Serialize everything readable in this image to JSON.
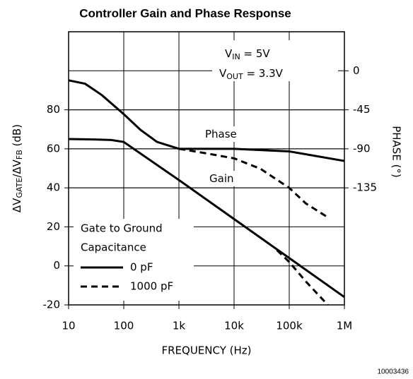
{
  "chart_data": {
    "type": "line",
    "title": "Controller Gain and Phase Response",
    "xlabel": "FREQUENCY (Hz)",
    "ylabel": [
      "ΔV",
      "GATE",
      "/ΔV",
      "FB",
      " (dB)"
    ],
    "y2label": "PHASE (°)",
    "footnote": "10003436",
    "xscale": "log",
    "xlim": [
      10,
      1000000
    ],
    "xticks": [
      10,
      100,
      {
        "value": 1000,
        "label": "1k"
      },
      {
        "value": 10000,
        "label": "10k"
      },
      {
        "value": 100000,
        "label": "100k"
      },
      {
        "value": 1000000,
        "label": "1M"
      }
    ],
    "ylim": [
      -20,
      120
    ],
    "yticks": [
      -20,
      0,
      20,
      40,
      60,
      80
    ],
    "y2lim": [
      -270,
      45
    ],
    "y2ticks": [
      0,
      -45,
      -90,
      -135
    ],
    "grid": true,
    "legend_title": [
      "Gate to Ground",
      "Capacitance"
    ],
    "annotations": [
      {
        "parts": [
          "V",
          "IN",
          " = 5V"
        ]
      },
      {
        "parts": [
          "V",
          "OUT",
          " = 3.3V"
        ]
      },
      {
        "parts": [
          "Phase"
        ]
      },
      {
        "parts": [
          "Gain"
        ]
      }
    ],
    "series": [
      {
        "name": "0 pF",
        "color": "#000000",
        "dash": false,
        "axis": "y",
        "x": [
          10,
          30,
          60,
          100,
          1000,
          10000,
          100000,
          1000000
        ],
        "values": [
          65,
          64.8,
          64.5,
          63.5,
          44,
          24,
          4,
          -16
        ]
      },
      {
        "name": "1000 pF",
        "color": "#000000",
        "dash": true,
        "axis": "y",
        "x": [
          60000,
          100000,
          200000,
          500000
        ],
        "values": [
          8,
          2,
          -8,
          -20
        ]
      },
      {
        "color": "#000000",
        "dash": false,
        "axis": "y2",
        "x": [
          10,
          20,
          40,
          100,
          200,
          400,
          1000,
          10000,
          100000,
          1000000
        ],
        "values": [
          -11,
          -15,
          -28,
          -50,
          -68,
          -82,
          -90,
          -90,
          -93,
          -104
        ]
      },
      {
        "color": "#000000",
        "dash": true,
        "axis": "y2",
        "x": [
          1000,
          3000,
          10000,
          30000,
          100000,
          200000,
          500000
        ],
        "values": [
          -90,
          -95,
          -101,
          -113,
          -135,
          -153,
          -169
        ]
      }
    ]
  }
}
